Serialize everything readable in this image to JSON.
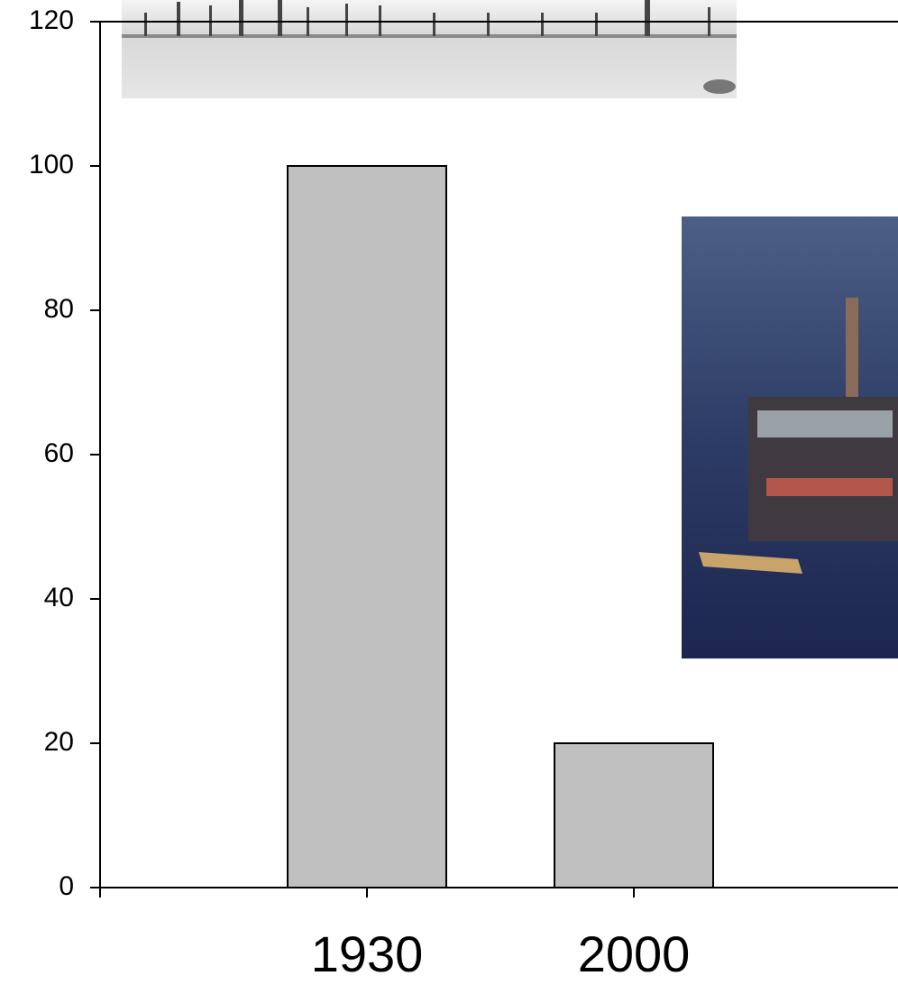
{
  "chart_data": {
    "type": "bar",
    "categories": [
      "1930",
      "2000"
    ],
    "values": [
      100,
      20
    ],
    "color": "#c0c0c0",
    "ylim": [
      0,
      120
    ],
    "yticks": [
      0,
      20,
      40,
      60,
      80,
      100,
      120
    ]
  }
}
